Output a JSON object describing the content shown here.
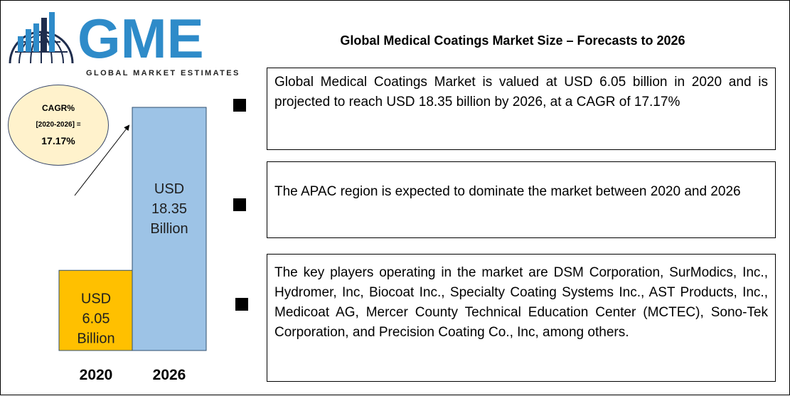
{
  "logo": {
    "letters": "GME",
    "tagline": "GLOBAL MARKET ESTIMATES"
  },
  "title": "Global Medical Coatings Market Size – Forecasts to 2026",
  "cagr": {
    "line1": "CAGR%",
    "line2": "[2020-2026] =",
    "line3": "17.17%"
  },
  "chart_data": {
    "type": "bar",
    "categories": [
      "2020",
      "2026"
    ],
    "values": [
      6.05,
      18.35
    ],
    "bar_labels": [
      [
        "USD",
        "6.05",
        "Billion"
      ],
      [
        "USD",
        "18.35",
        "Billion"
      ]
    ],
    "colors": [
      "#ffc000",
      "#9dc3e6"
    ],
    "title": "",
    "xlabel": "",
    "ylabel": ""
  },
  "points": [
    "Global Medical Coatings Market is valued at USD 6.05 billion in 2020 and is projected to reach USD 18.35 billion by 2026, at a CAGR of 17.17%",
    "The APAC region is expected to dominate the market between 2020 and 2026",
    "The key players operating in the market are DSM Corporation, SurModics, Inc., Hydromer, Inc, Biocoat Inc., Specialty Coating Systems Inc., AST Products, Inc., Medicoat AG, Mercer County Technical Education Center (MCTEC), Sono-Tek Corporation, and Precision Coating Co., Inc, among others."
  ],
  "colors": {
    "logo_blue": "#2e8bc9",
    "logo_dark": "#1f2d4d"
  }
}
